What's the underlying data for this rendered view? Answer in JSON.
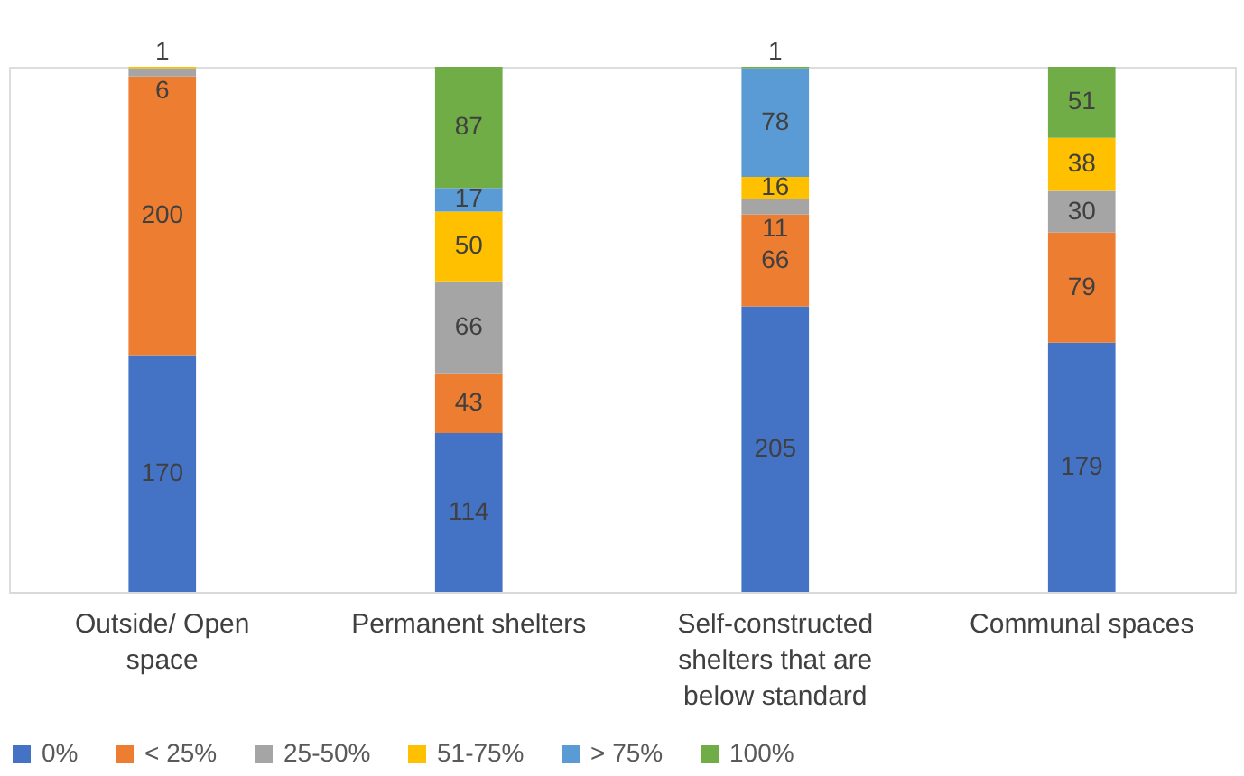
{
  "chart_data": {
    "type": "bar",
    "stacked": true,
    "data_labels": true,
    "legend": "bottom",
    "tick_labels": "x",
    "categories": [
      "Outside/ Open space",
      "Permanent shelters",
      "Self-constructed shelters that are below standard",
      "Communal  spaces"
    ],
    "series": [
      {
        "name": "0%",
        "color": "#4472c4",
        "values": [
          170,
          114,
          205,
          179
        ]
      },
      {
        "name": "< 25%",
        "color": "#ed7d31",
        "values": [
          200,
          43,
          66,
          79
        ]
      },
      {
        "name": "25-50%",
        "color": "#a5a5a5",
        "values": [
          6,
          66,
          11,
          30
        ]
      },
      {
        "name": "51-75%",
        "color": "#ffc000",
        "values": [
          1,
          50,
          16,
          38
        ]
      },
      {
        "name": "> 75%",
        "color": "#5b9bd5",
        "values": [
          null,
          17,
          78,
          null
        ]
      },
      {
        "name": "100%",
        "color": "#70ad47",
        "values": [
          null,
          87,
          1,
          51
        ]
      }
    ]
  }
}
